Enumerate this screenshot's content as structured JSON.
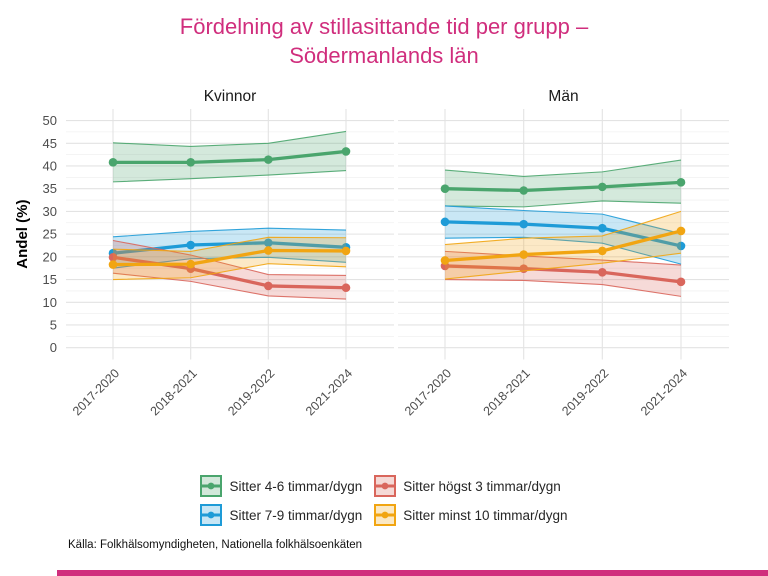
{
  "title": {
    "line1": "Fördelning av stillasittande tid per grupp –",
    "line2": "Södermanlands län",
    "color": "#D02E7D"
  },
  "source": "Källa: Folkhälsomyndigheten, Nationella folkhälsoenkäten",
  "legend": {
    "order": [
      0,
      2,
      1,
      3
    ],
    "position": "bottom"
  },
  "chart_data": {
    "type": "line",
    "title": "Fördelning av stillasittande tid per grupp – Södermanlands län",
    "categories": [
      "2017-2020",
      "2018-2021",
      "2019-2022",
      "2021-2024"
    ],
    "ylabel": "Andel (%)",
    "ylim": [
      0,
      50
    ],
    "yticks": [
      0,
      5,
      10,
      15,
      20,
      25,
      30,
      35,
      40,
      45,
      50
    ],
    "grid": true,
    "legend_position": "bottom",
    "band_style": "confidence-interval",
    "colors": {
      "grid_major": "#E3E3E3",
      "grid_minor": "#F1F1F1",
      "axis_text": "#4D4D4D",
      "facet_text": "#1A1A1A"
    },
    "facets": [
      {
        "label": "Kvinnor",
        "series": [
          {
            "name": "Sitter 4-6 timmar/dygn",
            "color": "#4AA56D",
            "values": [
              40.8,
              40.8,
              41.4,
              43.2
            ],
            "lower": [
              36.5,
              37.2,
              38.0,
              39.0
            ],
            "upper": [
              45.1,
              44.3,
              45.0,
              47.6
            ]
          },
          {
            "name": "Sitter 7-9 timmar/dygn",
            "color": "#1E9BD7",
            "values": [
              20.8,
              22.6,
              23.1,
              22.1
            ],
            "lower": [
              17.5,
              19.6,
              19.9,
              18.8
            ],
            "upper": [
              24.4,
              25.6,
              26.3,
              25.9
            ]
          },
          {
            "name": "Sitter högst 3 timmar/dygn",
            "color": "#D9665C",
            "values": [
              19.9,
              17.4,
              13.6,
              13.2
            ],
            "lower": [
              16.4,
              14.6,
              11.4,
              10.7
            ],
            "upper": [
              23.6,
              20.4,
              16.1,
              15.9
            ]
          },
          {
            "name": "Sitter minst 10 timmar/dygn",
            "color": "#F1A512",
            "values": [
              18.3,
              18.4,
              21.4,
              21.3
            ],
            "lower": [
              15.0,
              15.4,
              18.5,
              17.8
            ],
            "upper": [
              21.7,
              21.2,
              24.3,
              24.2
            ]
          }
        ]
      },
      {
        "label": "Män",
        "series": [
          {
            "name": "Sitter 4-6 timmar/dygn",
            "color": "#4AA56D",
            "values": [
              35.0,
              34.6,
              35.4,
              36.4
            ],
            "lower": [
              31.2,
              31.0,
              32.3,
              31.8
            ],
            "upper": [
              39.1,
              37.7,
              38.7,
              41.3
            ]
          },
          {
            "name": "Sitter 7-9 timmar/dygn",
            "color": "#1E9BD7",
            "values": [
              27.7,
              27.2,
              26.3,
              22.4
            ],
            "lower": [
              24.1,
              24.3,
              23.0,
              18.4
            ],
            "upper": [
              31.2,
              30.2,
              29.4,
              25.1
            ]
          },
          {
            "name": "Sitter högst 3 timmar/dygn",
            "color": "#D9665C",
            "values": [
              18.0,
              17.4,
              16.6,
              14.5
            ],
            "lower": [
              15.0,
              14.8,
              13.9,
              11.3
            ],
            "upper": [
              21.2,
              20.2,
              19.3,
              18.2
            ]
          },
          {
            "name": "Sitter minst 10 timmar/dygn",
            "color": "#F1A512",
            "values": [
              19.2,
              20.5,
              21.3,
              25.7
            ],
            "lower": [
              15.1,
              16.9,
              18.6,
              20.8
            ],
            "upper": [
              22.7,
              24.1,
              24.6,
              30.0
            ]
          }
        ]
      }
    ]
  }
}
